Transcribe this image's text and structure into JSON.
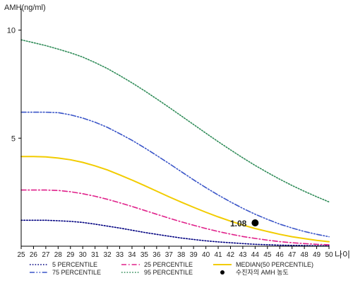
{
  "chart_data": {
    "type": "line",
    "ylabel": "AMH(ng/ml)",
    "xlabel": "나이",
    "xlim": [
      25,
      50
    ],
    "ylim": [
      0,
      11
    ],
    "yticks": [
      5,
      10
    ],
    "x": [
      25,
      26,
      27,
      28,
      29,
      30,
      31,
      32,
      33,
      34,
      35,
      36,
      37,
      38,
      39,
      40,
      41,
      42,
      43,
      44,
      45,
      46,
      47,
      48,
      49,
      50
    ],
    "series": [
      {
        "name": "5 PERCENTILE",
        "color": "#000080",
        "dash": "dotted",
        "values": [
          1.2,
          1.2,
          1.2,
          1.18,
          1.15,
          1.1,
          1.02,
          0.93,
          0.84,
          0.74,
          0.64,
          0.55,
          0.46,
          0.38,
          0.31,
          0.25,
          0.2,
          0.16,
          0.12,
          0.09,
          0.07,
          0.05,
          0.04,
          0.03,
          0.02,
          0.02
        ]
      },
      {
        "name": "25 PERCENTILE",
        "color": "#e0208a",
        "dash": "dashdot",
        "values": [
          2.6,
          2.6,
          2.6,
          2.58,
          2.52,
          2.43,
          2.31,
          2.17,
          2.01,
          1.84,
          1.66,
          1.48,
          1.3,
          1.13,
          0.97,
          0.82,
          0.68,
          0.56,
          0.45,
          0.36,
          0.28,
          0.21,
          0.16,
          0.12,
          0.09,
          0.07
        ]
      },
      {
        "name": "MEDIAN(50 PERCENTILE)",
        "color": "#f2cc00",
        "dash": "solid",
        "values": [
          4.15,
          4.15,
          4.13,
          4.08,
          4.0,
          3.88,
          3.72,
          3.53,
          3.3,
          3.06,
          2.81,
          2.55,
          2.29,
          2.04,
          1.8,
          1.57,
          1.36,
          1.16,
          0.98,
          0.82,
          0.68,
          0.55,
          0.44,
          0.35,
          0.27,
          0.21
        ]
      },
      {
        "name": "75 PERCENTILE",
        "color": "#3a55c8",
        "dash": "dashdotdot",
        "values": [
          6.2,
          6.2,
          6.2,
          6.18,
          6.08,
          5.93,
          5.74,
          5.5,
          5.21,
          4.9,
          4.56,
          4.2,
          3.83,
          3.45,
          3.07,
          2.71,
          2.37,
          2.05,
          1.75,
          1.48,
          1.24,
          1.02,
          0.84,
          0.68,
          0.55,
          0.44
        ]
      },
      {
        "name": "95 PERCENTILE",
        "color": "#2e8b57",
        "dash": "dotted",
        "values": [
          9.55,
          9.42,
          9.28,
          9.12,
          8.95,
          8.75,
          8.5,
          8.22,
          7.9,
          7.56,
          7.2,
          6.82,
          6.43,
          6.03,
          5.63,
          5.23,
          4.84,
          4.46,
          4.09,
          3.74,
          3.41,
          3.1,
          2.81,
          2.54,
          2.29,
          2.05
        ]
      }
    ],
    "marker": {
      "name": "수진자의 AMH 농도",
      "x": 44,
      "y": 1.08,
      "label": "1.08",
      "color": "#000000"
    },
    "legend_position": "bottom"
  }
}
